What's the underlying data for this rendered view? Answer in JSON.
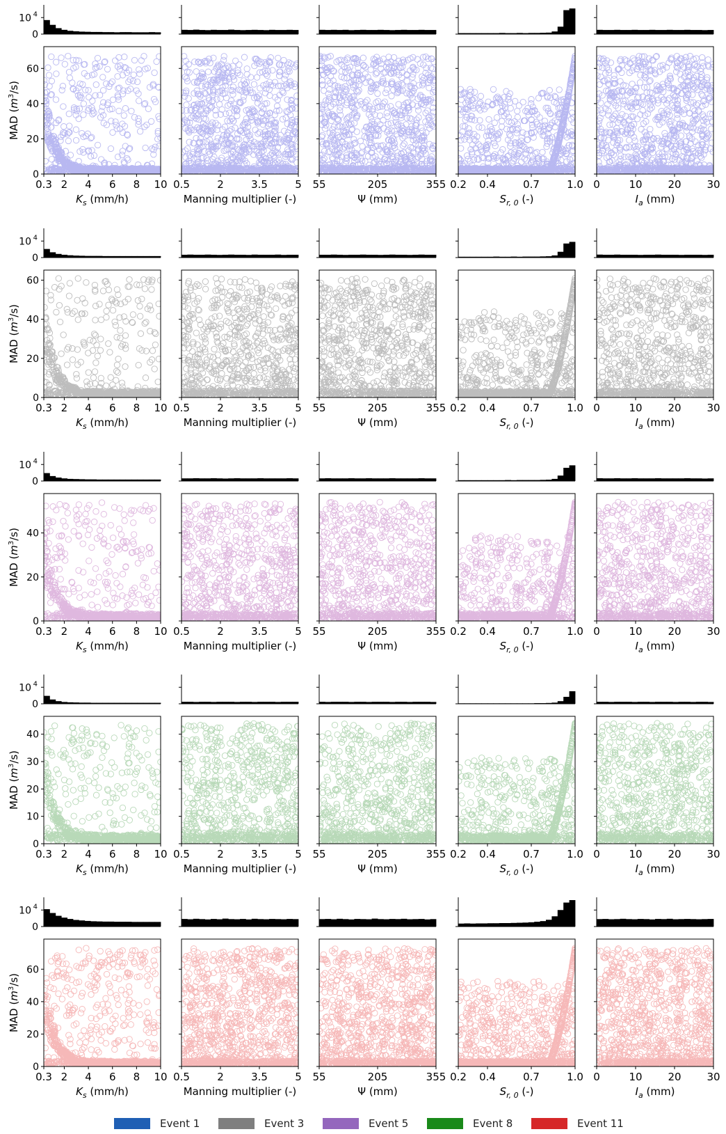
{
  "figure": {
    "y_label": "MAD (m³/s)",
    "y_label_parts": {
      "main": "MAD (",
      "var": "m",
      "sup": "3",
      "tail": "/s)"
    },
    "hist_tick_top": "10",
    "hist_tick_top_sup": "4",
    "hist_tick_zero": "0"
  },
  "parameters": [
    {
      "name": "Ks",
      "label_var": "K",
      "label_sub": "s",
      "label_unit": " (mm/h)",
      "xlim": [
        0.3,
        10
      ],
      "ticks": [
        "0.3",
        "2",
        "4",
        "6",
        "8",
        "10"
      ],
      "tick_values": [
        0.3,
        2,
        4,
        6,
        8,
        10
      ]
    },
    {
      "name": "Manning multiplier",
      "label_var": "",
      "label_sub": "",
      "label_unit": "Manning multiplier (-)",
      "xlim": [
        0.5,
        5
      ],
      "ticks": [
        "0.5",
        "2",
        "3.5",
        "5"
      ],
      "tick_values": [
        0.5,
        2,
        3.5,
        5
      ]
    },
    {
      "name": "Psi",
      "label_var": "Ψ",
      "label_sub": "",
      "label_unit": " (mm)",
      "xlim": [
        55,
        355
      ],
      "ticks": [
        "55",
        "205",
        "355"
      ],
      "tick_values": [
        55,
        205,
        355
      ]
    },
    {
      "name": "Sr0",
      "label_var": "S",
      "label_sub": "r, 0",
      "label_unit": " (-)",
      "xlim": [
        0.2,
        1.0
      ],
      "ticks": [
        "0.2",
        "0.4",
        "0.7",
        "1.0"
      ],
      "tick_values": [
        0.2,
        0.4,
        0.7,
        1.0
      ]
    },
    {
      "name": "Ia",
      "label_var": "I",
      "label_sub": "a",
      "label_unit": " (mm)",
      "xlim": [
        0,
        30
      ],
      "ticks": [
        "0",
        "10",
        "20",
        "30"
      ],
      "tick_values": [
        0,
        10,
        20,
        30
      ]
    }
  ],
  "legend": [
    {
      "label": "Event 1",
      "color": "#1f5fb4"
    },
    {
      "label": "Event 3",
      "color": "#7f7f7f"
    },
    {
      "label": "Event 5",
      "color": "#9467bd"
    },
    {
      "label": "Event 8",
      "color": "#1a8a1a"
    },
    {
      "label": "Event 11",
      "color": "#d62728"
    }
  ],
  "chart_data": [
    {
      "type": "scatter",
      "event": "Event 1",
      "color": "#0000cc",
      "ylim": [
        0,
        70
      ],
      "yticks": [
        0,
        20,
        40,
        60
      ],
      "max_mad": 67,
      "point_density": "high",
      "hist_counts": {
        "Ks": [
          8500,
          5600,
          3600,
          2600,
          2000,
          1700,
          1500,
          1400,
          1300,
          1300,
          1200,
          1200,
          1100,
          1200,
          1200,
          1100,
          1100,
          1100,
          1200,
          1100
        ],
        "Manning multiplier": [
          2600,
          2500,
          2700,
          2500,
          2400,
          2600,
          2500,
          2500,
          2700,
          2500,
          2400,
          2500,
          2600,
          2500,
          2400,
          2600,
          2500,
          2500,
          2600,
          2500
        ],
        "Psi": [
          2600,
          2500,
          2600,
          2500,
          2600,
          2400,
          2500,
          2600,
          2500,
          2500,
          2600,
          2500,
          2400,
          2500,
          2600,
          2500,
          2500,
          2600,
          2500,
          2500
        ],
        "Sr0": [
          600,
          600,
          600,
          600,
          600,
          600,
          600,
          700,
          600,
          600,
          700,
          600,
          700,
          700,
          800,
          900,
          1600,
          4500,
          14500,
          15500
        ],
        "Ia": [
          2600,
          2500,
          2500,
          2600,
          2500,
          2500,
          2600,
          2500,
          2500,
          2600,
          2500,
          2500,
          2600,
          2500,
          2500,
          2600,
          2500,
          2500,
          2400,
          2500
        ]
      }
    },
    {
      "type": "scatter",
      "event": "Event 3",
      "color": "#111111",
      "ylim": [
        0,
        63
      ],
      "yticks": [
        0,
        20,
        40,
        60
      ],
      "max_mad": 61,
      "point_density": "medium",
      "hist_counts": {
        "Ks": [
          5200,
          3200,
          2200,
          1700,
          1400,
          1200,
          1100,
          1000,
          1000,
          1000,
          900,
          900,
          900,
          900,
          900,
          900,
          900,
          900,
          900,
          900
        ],
        "Manning multiplier": [
          1700,
          1800,
          1700,
          1700,
          1800,
          1700,
          1600,
          1700,
          1800,
          1700,
          1700,
          1600,
          1800,
          1700,
          1700,
          1700,
          1800,
          1600,
          1700,
          1700
        ],
        "Psi": [
          1700,
          1700,
          1800,
          1700,
          1600,
          1700,
          1700,
          1800,
          1700,
          1700,
          1600,
          1700,
          1800,
          1700,
          1700,
          1600,
          1700,
          1800,
          1700,
          1700
        ],
        "Sr0": [
          500,
          500,
          500,
          500,
          500,
          500,
          600,
          500,
          500,
          600,
          500,
          600,
          600,
          600,
          700,
          800,
          1300,
          3500,
          8500,
          9500
        ],
        "Ia": [
          1800,
          1700,
          1700,
          1800,
          1700,
          1700,
          1700,
          1600,
          1700,
          1700,
          1800,
          1700,
          1700,
          1700,
          1600,
          1700,
          1700,
          1700,
          1600,
          1700
        ]
      }
    },
    {
      "type": "scatter",
      "event": "Event 5",
      "color": "#8b008b",
      "ylim": [
        0,
        56
      ],
      "yticks": [
        0,
        20,
        40
      ],
      "max_mad": 54,
      "point_density": "medium",
      "hist_counts": {
        "Ks": [
          4800,
          3000,
          2100,
          1600,
          1300,
          1200,
          1100,
          1000,
          1000,
          900,
          900,
          900,
          900,
          900,
          900,
          900,
          900,
          900,
          900,
          900
        ],
        "Manning multiplier": [
          1600,
          1600,
          1700,
          1600,
          1600,
          1700,
          1600,
          1500,
          1600,
          1700,
          1600,
          1600,
          1600,
          1700,
          1600,
          1600,
          1600,
          1600,
          1700,
          1600
        ],
        "Psi": [
          1600,
          1700,
          1600,
          1600,
          1600,
          1700,
          1600,
          1600,
          1700,
          1600,
          1600,
          1600,
          1700,
          1600,
          1600,
          1600,
          1600,
          1700,
          1600,
          1600
        ],
        "Sr0": [
          500,
          500,
          500,
          500,
          500,
          500,
          500,
          500,
          600,
          500,
          600,
          600,
          600,
          600,
          700,
          800,
          1300,
          3300,
          8000,
          9500
        ],
        "Ia": [
          1700,
          1600,
          1600,
          1700,
          1600,
          1600,
          1700,
          1600,
          1600,
          1600,
          1700,
          1600,
          1600,
          1600,
          1600,
          1700,
          1600,
          1600,
          1500,
          1600
        ]
      }
    },
    {
      "type": "scatter",
      "event": "Event 8",
      "color": "#007700",
      "ylim": [
        0,
        45
      ],
      "yticks": [
        0,
        10,
        20,
        30,
        40
      ],
      "max_mad": 44,
      "point_density": "medium",
      "hist_counts": {
        "Ks": [
          4800,
          2600,
          1600,
          1100,
          900,
          800,
          700,
          700,
          600,
          600,
          600,
          600,
          600,
          600,
          600,
          600,
          600,
          600,
          600,
          600
        ],
        "Manning multiplier": [
          1200,
          1200,
          1100,
          1200,
          1200,
          1100,
          1200,
          1200,
          1200,
          1100,
          1200,
          1200,
          1100,
          1200,
          1200,
          1200,
          1100,
          1200,
          1200,
          1200
        ],
        "Psi": [
          1200,
          1100,
          1200,
          1200,
          1200,
          1100,
          1200,
          1200,
          1100,
          1200,
          1200,
          1200,
          1100,
          1200,
          1200,
          1100,
          1200,
          1200,
          1200,
          1100
        ],
        "Sr0": [
          300,
          300,
          300,
          300,
          300,
          300,
          300,
          300,
          300,
          300,
          300,
          300,
          300,
          400,
          400,
          500,
          700,
          1600,
          4200,
          7600
        ],
        "Ia": [
          1200,
          1200,
          1100,
          1200,
          1200,
          1200,
          1100,
          1200,
          1200,
          1100,
          1200,
          1200,
          1200,
          1100,
          1200,
          1200,
          1100,
          1200,
          1200,
          1100
        ]
      }
    },
    {
      "type": "scatter",
      "event": "Event 11",
      "color": "#dd0000",
      "ylim": [
        0,
        76
      ],
      "yticks": [
        0,
        20,
        40,
        60
      ],
      "max_mad": 73,
      "point_density": "high",
      "hist_counts": {
        "Ks": [
          10500,
          8200,
          6500,
          5400,
          4600,
          4000,
          3700,
          3400,
          3200,
          3100,
          3000,
          3000,
          2900,
          2900,
          2900,
          2800,
          2800,
          2800,
          2800,
          2800
        ],
        "Manning multiplier": [
          4600,
          4400,
          4700,
          4500,
          4300,
          4600,
          4400,
          4800,
          4500,
          4400,
          4600,
          4300,
          4700,
          4500,
          4400,
          4600,
          4500,
          4400,
          4600,
          4500
        ],
        "Psi": [
          4500,
          4600,
          4400,
          4700,
          4500,
          4300,
          4600,
          4500,
          4400,
          4800,
          4500,
          4400,
          4600,
          4500,
          4700,
          4400,
          4500,
          4600,
          4300,
          4500
        ],
        "Sr0": [
          1800,
          1900,
          1800,
          1900,
          1900,
          2000,
          2000,
          2100,
          2100,
          2200,
          2300,
          2400,
          2600,
          2900,
          3300,
          4100,
          6200,
          10000,
          14500,
          16000
        ],
        "Ia": [
          4500,
          4600,
          4400,
          4500,
          4700,
          4500,
          4400,
          4600,
          4500,
          4300,
          4600,
          4500,
          4700,
          4400,
          4500,
          4600,
          4500,
          4400,
          4500,
          4600
        ]
      }
    }
  ]
}
